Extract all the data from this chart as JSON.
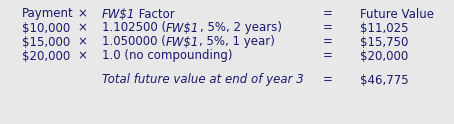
{
  "background_color": "#e8e8e8",
  "text_color": "#1a1a6e",
  "rows": [
    {
      "payment": "Payment",
      "times": "×",
      "factor_plain": "FW$1 Factor",
      "factor_has_fw": false,
      "equals": "=",
      "fv": "Future Value",
      "is_header": true
    },
    {
      "payment": "$10,000",
      "times": "×",
      "factor_plain": "1.102500 (FW$1, 5%, 2 years)",
      "factor_has_fw": true,
      "factor_pre": "1.102500 (",
      "factor_fw": "FW$1",
      "factor_post": ", 5%, 2 years)",
      "equals": "=",
      "fv": "$11,025",
      "is_header": false
    },
    {
      "payment": "$15,000",
      "times": "×",
      "factor_plain": "1.050000 (FW$1, 5%, 1 year)",
      "factor_has_fw": true,
      "factor_pre": "1.050000 (",
      "factor_fw": "FW$1",
      "factor_post": ", 5%, 1 year)",
      "equals": "=",
      "fv": "$15,750",
      "is_header": false
    },
    {
      "payment": "$20,000",
      "times": "×",
      "factor_plain": "1.0 (no compounding)",
      "factor_has_fw": false,
      "equals": "=",
      "fv": "$20,000",
      "is_header": false
    }
  ],
  "total_label": "Total future value at end of year 3",
  "total_equals": "=",
  "total_fv": "$46,775",
  "fontsize": 8.5,
  "fig_width": 4.54,
  "fig_height": 1.24,
  "dpi": 100
}
